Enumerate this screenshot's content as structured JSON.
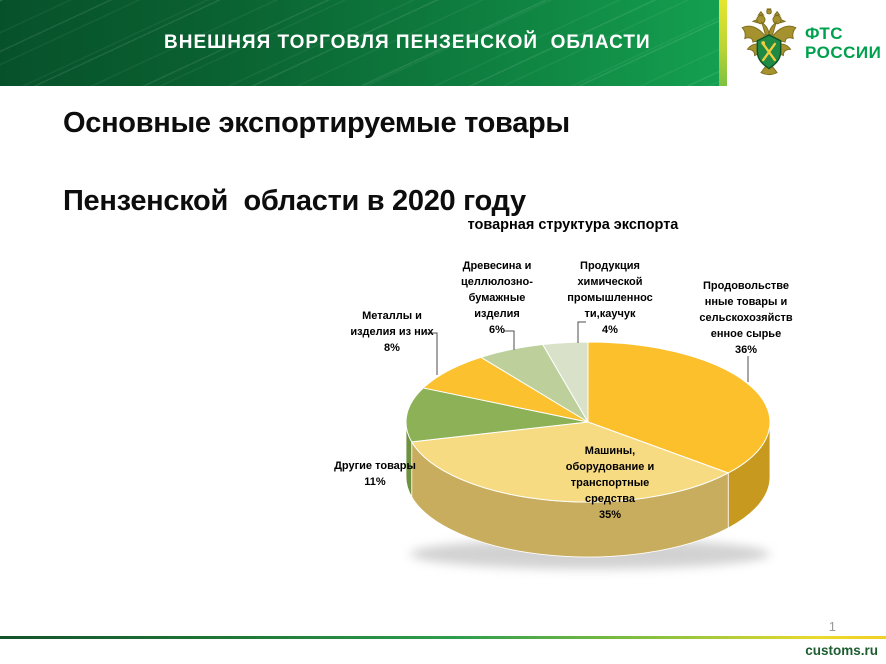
{
  "header": {
    "banner_title": "ВНЕШНЯЯ ТОРГОВЛЯ ПЕНЗЕНСКОЙ  ОБЛАСТИ",
    "logo": {
      "line1": "ФТС",
      "line2": "РОССИИ"
    }
  },
  "title": {
    "line1": "Основные экспортируемые товары",
    "line2": "Пензенской  области в 2020 году"
  },
  "chart_data": {
    "type": "pie",
    "title": "товарная структура экспорта",
    "three_d": true,
    "start_angle_deg": 0,
    "direction": "clockwise",
    "legend_position": "none",
    "segments": [
      {
        "name": "Продовольственные товары и сельскохозяйственное сырье",
        "label_lines": [
          "Продовольстве",
          "нные товары и",
          "сельскохозяйств",
          "енное сырье"
        ],
        "value": 36,
        "pct_label": "36%",
        "color": "#FBC02B",
        "side_color": "#C7991F"
      },
      {
        "name": "Машины, оборудование и транспортные средства",
        "label_lines": [
          "Машины,",
          "оборудование и",
          "транспортные",
          "средства"
        ],
        "value": 35,
        "pct_label": "35%",
        "color": "#F7DB82",
        "side_color": "#C9AD5E"
      },
      {
        "name": "Другие товары",
        "label_lines": [
          "Другие товары"
        ],
        "value": 11,
        "pct_label": "11%",
        "color": "#8DB156",
        "side_color": "#6E9140"
      },
      {
        "name": "Металлы и изделия из них",
        "label_lines": [
          "Металлы и",
          "изделия из них"
        ],
        "value": 8,
        "pct_label": "8%",
        "color": "#FBC12E",
        "side_color": "#C7991F"
      },
      {
        "name": "Древесина и целлюлозно-бумажные изделия",
        "label_lines": [
          "Древесина и",
          "целлюлозно-",
          "бумажные",
          "изделия"
        ],
        "value": 6,
        "pct_label": "6%",
        "color": "#BDD09B",
        "side_color": "#94A873"
      },
      {
        "name": "Продукция химической промышленности, каучук",
        "label_lines": [
          "Продукция",
          "химической",
          "промышленнос",
          "ти,каучук"
        ],
        "value": 4,
        "pct_label": "4%",
        "color": "#D9E2C9",
        "side_color": "#ADB897"
      }
    ]
  },
  "footer": {
    "page_number": "1",
    "site": "customs.ru"
  },
  "colors": {
    "header_green_dark": "#07512a",
    "header_green_light": "#14a050",
    "brand_green": "#00a14e",
    "footer_site_green": "#1d5c2f",
    "accent_lime": "#bcd437"
  }
}
